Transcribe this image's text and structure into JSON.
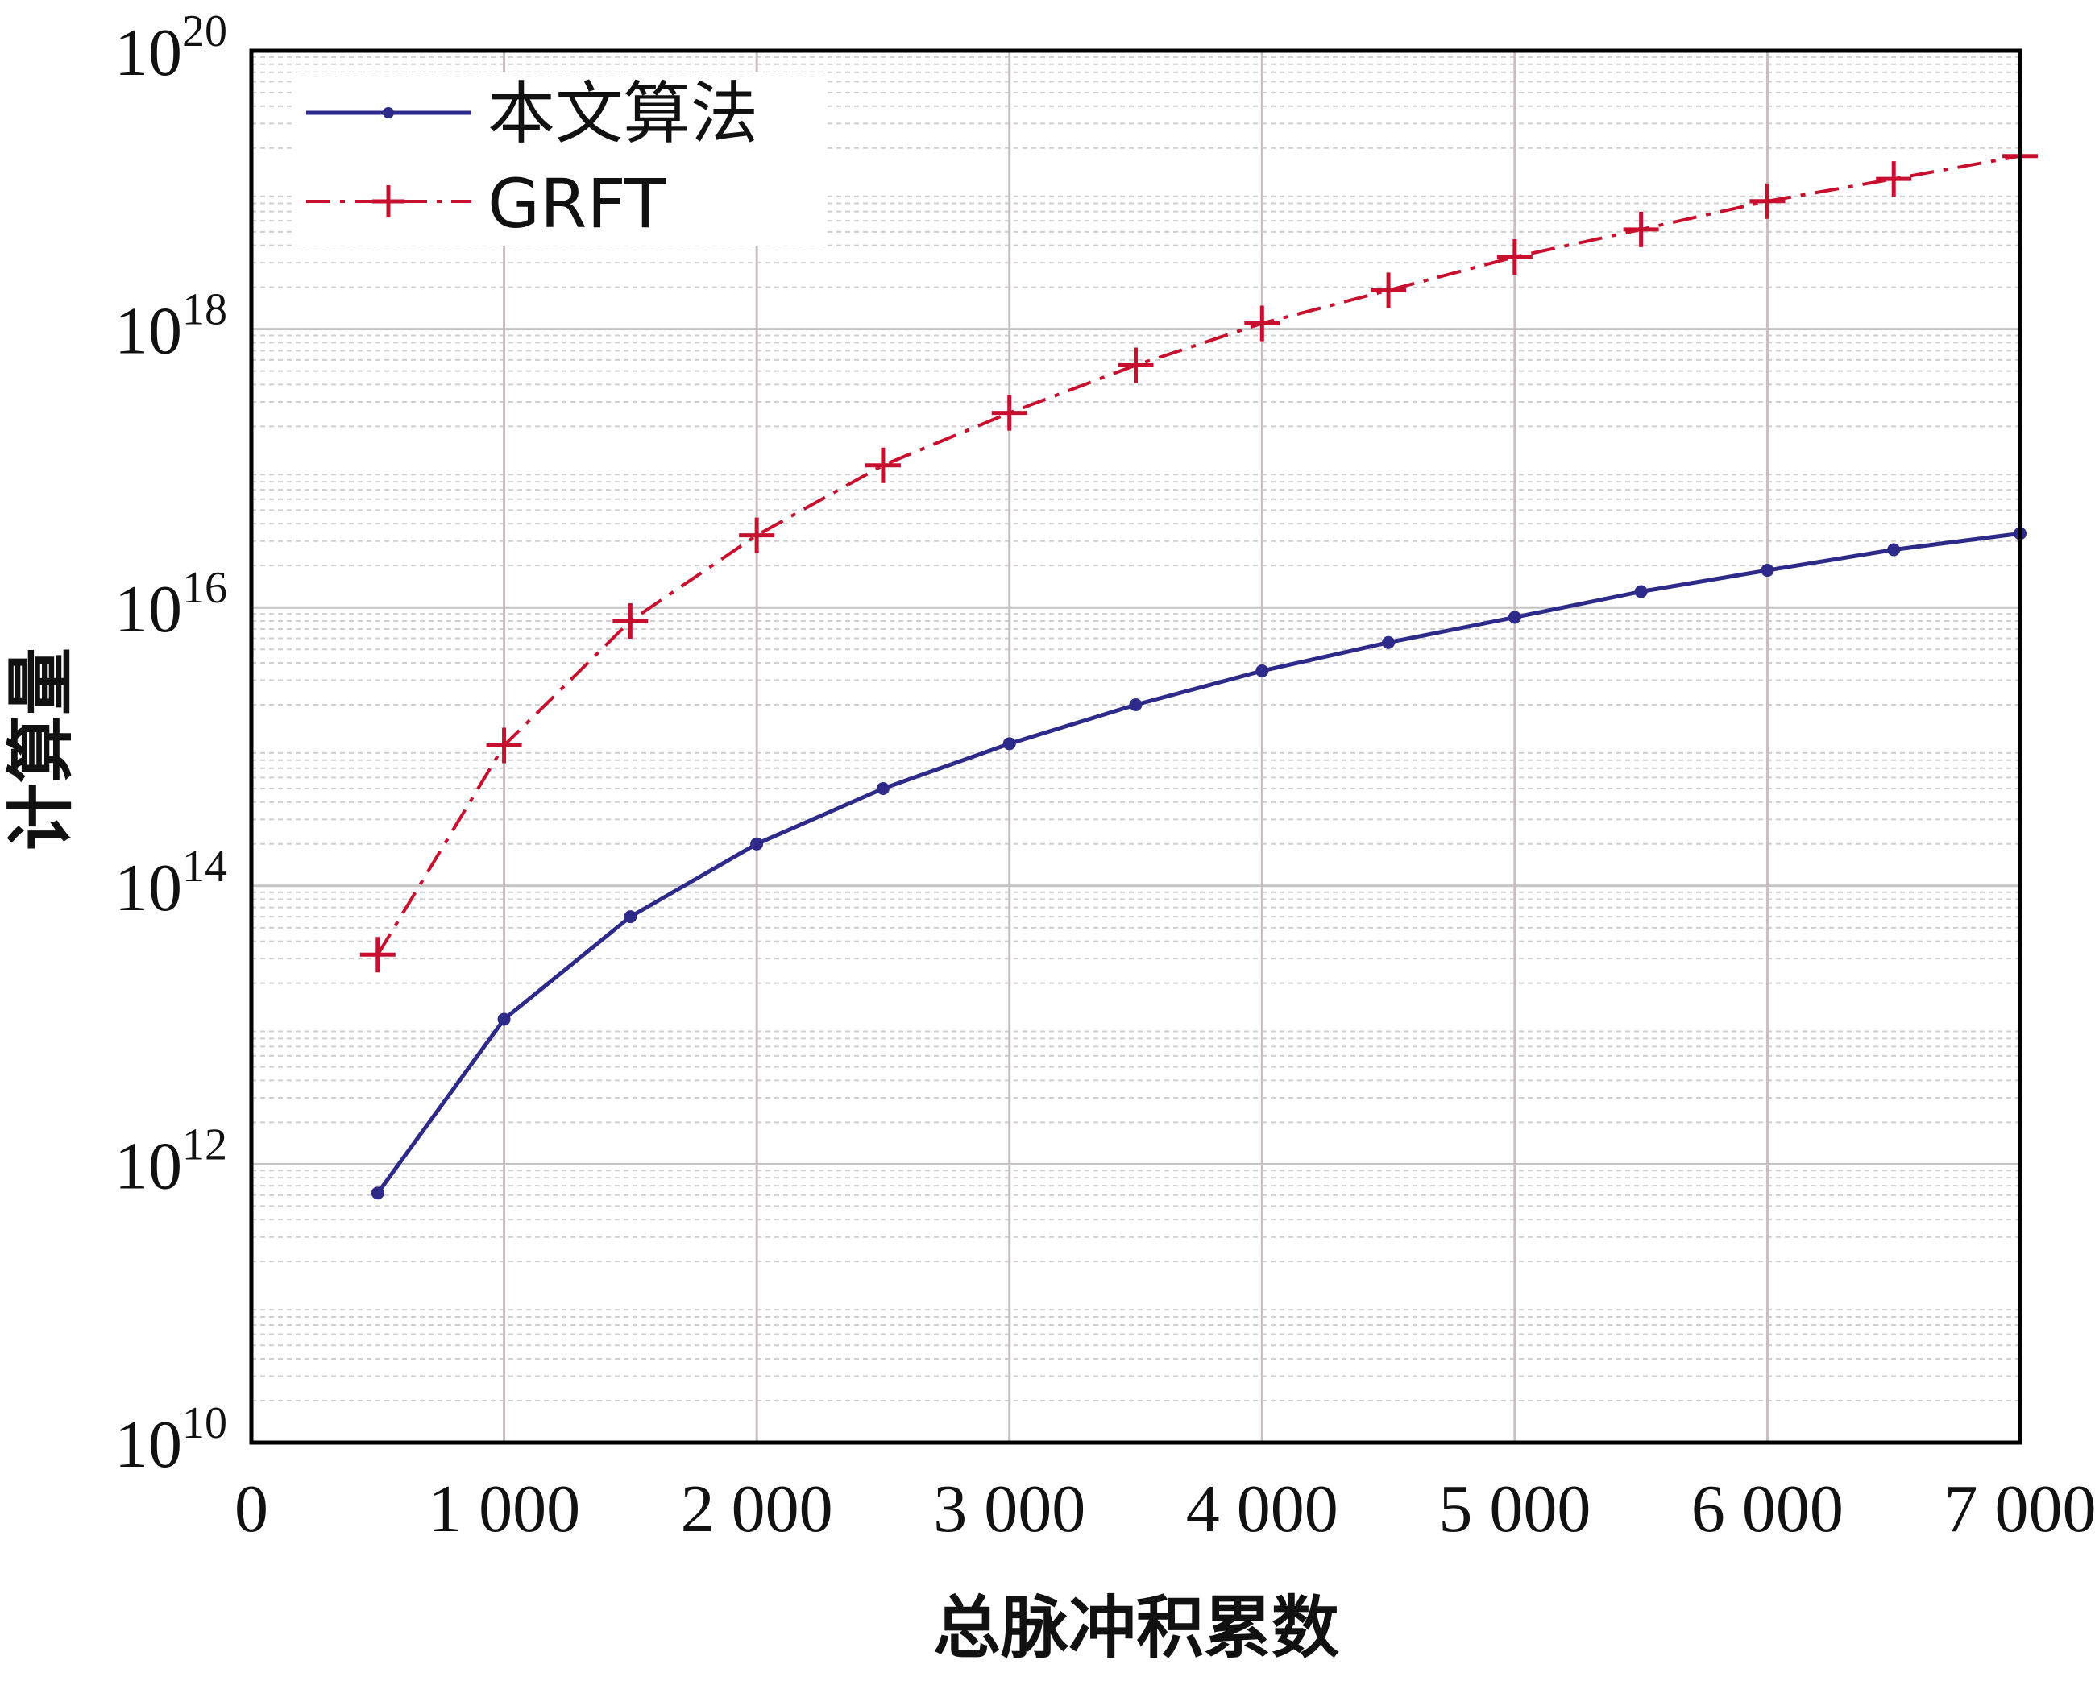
{
  "chart_data": {
    "type": "line",
    "title": "",
    "xlabel": "总脉冲积累数",
    "ylabel": "计算量",
    "xlim": [
      0,
      7000
    ],
    "ylim": [
      10000000000.0,
      1e+20
    ],
    "yscale": "log",
    "grid": true,
    "legend_placement": "top-left",
    "x_ticks": [
      {
        "value": 0,
        "label": "0"
      },
      {
        "value": 1000,
        "label": "1 000"
      },
      {
        "value": 2000,
        "label": "2 000"
      },
      {
        "value": 3000,
        "label": "3 000"
      },
      {
        "value": 4000,
        "label": "4 000"
      },
      {
        "value": 5000,
        "label": "5 000"
      },
      {
        "value": 6000,
        "label": "6 000"
      },
      {
        "value": 7000,
        "label": "7 000"
      }
    ],
    "y_ticks": [
      {
        "exp": 10,
        "base": "10",
        "sup": "10"
      },
      {
        "exp": 12,
        "base": "10",
        "sup": "12"
      },
      {
        "exp": 14,
        "base": "10",
        "sup": "14"
      },
      {
        "exp": 16,
        "base": "10",
        "sup": "16"
      },
      {
        "exp": 18,
        "base": "10",
        "sup": "18"
      },
      {
        "exp": 20,
        "base": "10",
        "sup": "20"
      }
    ],
    "x": [
      500,
      1000,
      1500,
      2000,
      2500,
      3000,
      3500,
      4000,
      4500,
      5000,
      5500,
      6000,
      6500,
      7000
    ],
    "series": [
      {
        "name": "本文算法",
        "color": "#2e2a8a",
        "marker": "dot",
        "linestyle": "solid",
        "values": [
          620000000000.0,
          11000000000000.0,
          60000000000000.0,
          200000000000000.0,
          500000000000000.0,
          1050000000000000.0,
          2000000000000000.0,
          3500000000000000.0,
          5600000000000000.0,
          8500000000000000.0,
          1.3e+16,
          1.85e+16,
          2.6e+16,
          3.4e+16
        ]
      },
      {
        "name": "GRFT",
        "color": "#c8102e",
        "marker": "plus",
        "linestyle": "dashdot",
        "values": [
          32000000000000.0,
          1020000000000000.0,
          8000000000000000.0,
          3.3e+16,
          1.05e+17,
          2.5e+17,
          5.5e+17,
          1.1e+18,
          1.9e+18,
          3.3e+18,
          5.2e+18,
          8.3e+18,
          1.2e+19,
          1.75e+19
        ]
      }
    ]
  }
}
